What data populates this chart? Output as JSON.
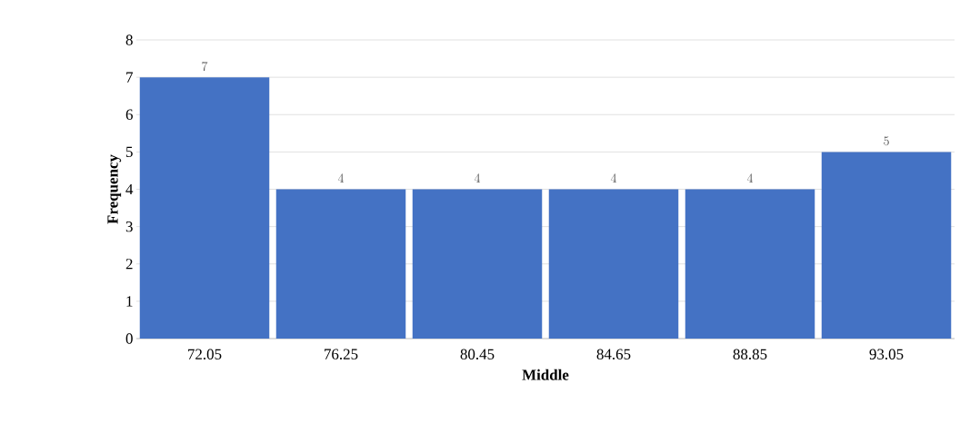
{
  "chart_data": {
    "type": "bar",
    "xlabel": "Middle",
    "ylabel": "Frequency",
    "categories": [
      "72.05",
      "76.25",
      "80.45",
      "84.65",
      "88.85",
      "93.05"
    ],
    "values": [
      7,
      4,
      4,
      4,
      4,
      5
    ],
    "color": "#4472c4",
    "ylim": [
      0,
      8
    ],
    "yticks": [
      0,
      1,
      2,
      3,
      4,
      5,
      6,
      7,
      8
    ],
    "grid": "y",
    "data_labels": true
  }
}
